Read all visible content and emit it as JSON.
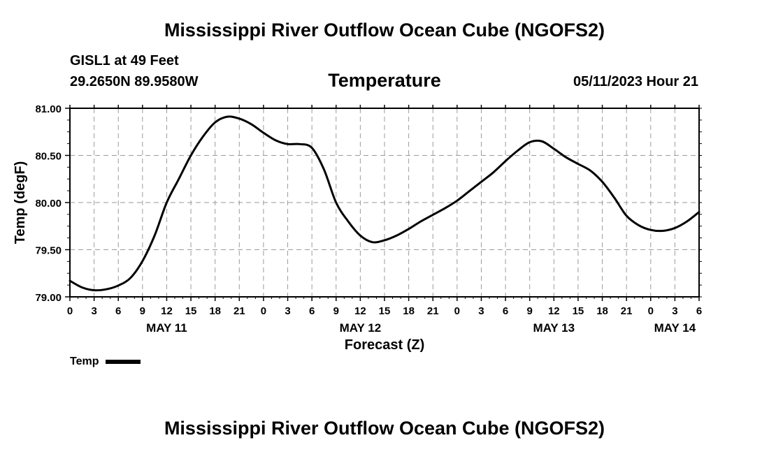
{
  "header": {
    "title": "Mississippi River Outflow Ocean Cube (NGOFS2)",
    "station": "GISL1 at 49 Feet",
    "coords": "29.2650N  89.9580W",
    "subtitle": "Temperature",
    "datetime": "05/11/2023 Hour 21"
  },
  "footer": {
    "title": "Mississippi River Outflow Ocean Cube (NGOFS2)"
  },
  "legend": {
    "label": "Temp",
    "color": "#000000"
  },
  "chart_data": {
    "type": "line",
    "title": "Temperature",
    "xlabel": "Forecast (Z)",
    "ylabel": "Temp (degF)",
    "grid": true,
    "xlim": [
      0,
      78
    ],
    "ylim": [
      79.0,
      81.0
    ],
    "yticks": [
      "79.00",
      "79.50",
      "80.00",
      "80.50",
      "81.00"
    ],
    "ytick_values": [
      79.0,
      79.5,
      80.0,
      80.5,
      81.0
    ],
    "xtick_labels": [
      "0",
      "3",
      "6",
      "9",
      "12",
      "15",
      "18",
      "21",
      "0",
      "3",
      "6",
      "9",
      "12",
      "15",
      "18",
      "21",
      "0",
      "3",
      "6",
      "9",
      "12",
      "15",
      "18",
      "21",
      "0",
      "3",
      "6"
    ],
    "date_labels": [
      {
        "label": "MAY 11",
        "hour": 12
      },
      {
        "label": "MAY 12",
        "hour": 36
      },
      {
        "label": "MAY 13",
        "hour": 60
      },
      {
        "label": "MAY 14",
        "hour": 75
      }
    ],
    "series": [
      {
        "name": "Temp",
        "x": [
          0,
          1.5,
          3,
          4.5,
          6,
          7.5,
          9,
          10.5,
          12,
          13.5,
          15,
          16.5,
          18,
          19.5,
          21,
          22.5,
          24,
          25.5,
          27,
          28.5,
          30,
          31.5,
          33,
          34.5,
          36,
          37.5,
          39,
          40.5,
          42,
          43.5,
          45,
          46.5,
          48,
          49.5,
          51,
          52.5,
          54,
          55.5,
          57,
          58.5,
          60,
          61.5,
          63,
          64.5,
          66,
          67.5,
          69,
          70.5,
          72,
          73.5,
          75,
          76.5,
          78
        ],
        "y": [
          79.17,
          79.1,
          79.07,
          79.08,
          79.12,
          79.2,
          79.38,
          79.65,
          80.0,
          80.25,
          80.5,
          80.7,
          80.85,
          80.91,
          80.89,
          80.83,
          80.74,
          80.66,
          80.62,
          80.62,
          80.58,
          80.35,
          80.0,
          79.8,
          79.65,
          79.58,
          79.6,
          79.65,
          79.72,
          79.8,
          79.87,
          79.94,
          80.02,
          80.12,
          80.22,
          80.32,
          80.44,
          80.55,
          80.64,
          80.65,
          80.57,
          80.48,
          80.41,
          80.34,
          80.22,
          80.05,
          79.86,
          79.76,
          79.71,
          79.7,
          79.73,
          79.8,
          79.9
        ]
      }
    ]
  }
}
